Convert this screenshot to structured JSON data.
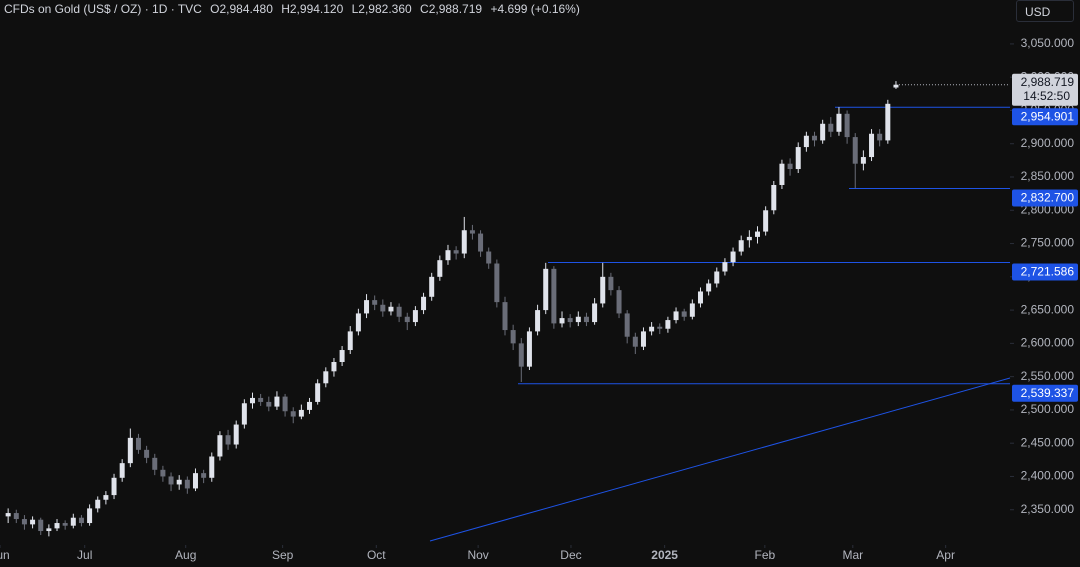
{
  "header": {
    "title": "CFDs on Gold (US$ / OZ) · 1D · TVC",
    "open": "O2,984.480",
    "high": "H2,994.120",
    "low": "L2,982.360",
    "close": "C2,988.719",
    "change": "+4.699 (+0.16%)",
    "currency": "USD"
  },
  "chart_data": {
    "type": "candlestick",
    "up_color": "#e0e3eb",
    "down_color": "#6a6d78",
    "xlim": [
      -1,
      123
    ],
    "ylim": [
      2297,
      3116
    ],
    "xticks": [
      {
        "value": -1,
        "label": "Jun"
      },
      {
        "value": 9.4,
        "label": "Jul"
      },
      {
        "value": 21.8,
        "label": "Aug"
      },
      {
        "value": 33.7,
        "label": "Sep"
      },
      {
        "value": 45.2,
        "label": "Oct"
      },
      {
        "value": 57.7,
        "label": "Nov"
      },
      {
        "value": 69.1,
        "label": "Dec"
      },
      {
        "value": 80.6,
        "label": "2025"
      },
      {
        "value": 92.9,
        "label": "Feb"
      },
      {
        "value": 103.7,
        "label": "Mar"
      },
      {
        "value": 115.1,
        "label": "Apr"
      }
    ],
    "yticks": [
      {
        "value": 2350,
        "label": "2,350.000"
      },
      {
        "value": 2400,
        "label": "2,400.000"
      },
      {
        "value": 2450,
        "label": "2,450.000"
      },
      {
        "value": 2500,
        "label": "2,500.000"
      },
      {
        "value": 2550,
        "label": "2,550.000"
      },
      {
        "value": 2600,
        "label": "2,600.000"
      },
      {
        "value": 2650,
        "label": "2,650.000"
      },
      {
        "value": 2700,
        "label": "2,700.000"
      },
      {
        "value": 2750,
        "label": "2,750.000"
      },
      {
        "value": 2800,
        "label": "2,800.000"
      },
      {
        "value": 2850,
        "label": "2,850.000"
      },
      {
        "value": 2900,
        "label": "2,900.000"
      },
      {
        "value": 2950,
        "label": "2,950.000"
      },
      {
        "value": 3000,
        "label": "3,000.000"
      },
      {
        "value": 3050,
        "label": "3,050.000"
      }
    ],
    "hlines": [
      {
        "value": 2954.901,
        "label": "2,954.901"
      },
      {
        "value": 2832.7,
        "label": "2,832.700"
      },
      {
        "value": 2721.586,
        "label": "2,721.586"
      },
      {
        "value": 2539.337,
        "label": "2,539.337"
      }
    ],
    "last_price": {
      "label": "2,988.719",
      "countdown": "14:52:50"
    },
    "ohlc": [
      [
        2340,
        2352,
        2330,
        2345
      ],
      [
        2345,
        2350,
        2330,
        2336
      ],
      [
        2336,
        2342,
        2320,
        2328
      ],
      [
        2328,
        2340,
        2322,
        2335
      ],
      [
        2335,
        2338,
        2312,
        2318
      ],
      [
        2318,
        2328,
        2310,
        2322
      ],
      [
        2322,
        2336,
        2318,
        2330
      ],
      [
        2330,
        2334,
        2320,
        2326
      ],
      [
        2326,
        2344,
        2322,
        2338
      ],
      [
        2338,
        2342,
        2325,
        2330
      ],
      [
        2330,
        2358,
        2326,
        2352
      ],
      [
        2352,
        2370,
        2346,
        2365
      ],
      [
        2365,
        2378,
        2358,
        2372
      ],
      [
        2372,
        2404,
        2366,
        2398
      ],
      [
        2398,
        2426,
        2392,
        2420
      ],
      [
        2420,
        2472,
        2414,
        2458
      ],
      [
        2458,
        2464,
        2434,
        2440
      ],
      [
        2440,
        2446,
        2420,
        2428
      ],
      [
        2428,
        2434,
        2402,
        2410
      ],
      [
        2410,
        2416,
        2392,
        2400
      ],
      [
        2400,
        2406,
        2378,
        2388
      ],
      [
        2388,
        2402,
        2380,
        2395
      ],
      [
        2395,
        2400,
        2374,
        2382
      ],
      [
        2382,
        2412,
        2378,
        2405
      ],
      [
        2405,
        2410,
        2390,
        2398
      ],
      [
        2398,
        2436,
        2392,
        2430
      ],
      [
        2430,
        2468,
        2424,
        2462
      ],
      [
        2462,
        2470,
        2440,
        2448
      ],
      [
        2448,
        2484,
        2442,
        2478
      ],
      [
        2478,
        2516,
        2472,
        2510
      ],
      [
        2510,
        2526,
        2502,
        2518
      ],
      [
        2518,
        2524,
        2506,
        2512
      ],
      [
        2512,
        2520,
        2498,
        2505
      ],
      [
        2505,
        2528,
        2500,
        2520
      ],
      [
        2520,
        2524,
        2490,
        2498
      ],
      [
        2498,
        2504,
        2480,
        2490
      ],
      [
        2490,
        2508,
        2486,
        2500
      ],
      [
        2500,
        2518,
        2494,
        2512
      ],
      [
        2512,
        2546,
        2508,
        2540
      ],
      [
        2540,
        2564,
        2534,
        2558
      ],
      [
        2558,
        2578,
        2550,
        2572
      ],
      [
        2572,
        2596,
        2566,
        2590
      ],
      [
        2590,
        2626,
        2584,
        2618
      ],
      [
        2618,
        2652,
        2612,
        2645
      ],
      [
        2645,
        2674,
        2638,
        2665
      ],
      [
        2665,
        2672,
        2650,
        2658
      ],
      [
        2658,
        2666,
        2640,
        2648
      ],
      [
        2648,
        2662,
        2642,
        2655
      ],
      [
        2655,
        2660,
        2632,
        2640
      ],
      [
        2640,
        2646,
        2620,
        2632
      ],
      [
        2632,
        2656,
        2626,
        2650
      ],
      [
        2650,
        2676,
        2644,
        2670
      ],
      [
        2670,
        2706,
        2664,
        2700
      ],
      [
        2700,
        2732,
        2694,
        2725
      ],
      [
        2725,
        2748,
        2718,
        2740
      ],
      [
        2740,
        2746,
        2726,
        2735
      ],
      [
        2735,
        2790,
        2728,
        2770
      ],
      [
        2770,
        2778,
        2756,
        2765
      ],
      [
        2765,
        2770,
        2730,
        2738
      ],
      [
        2738,
        2744,
        2712,
        2720
      ],
      [
        2720,
        2726,
        2654,
        2662
      ],
      [
        2662,
        2670,
        2612,
        2620
      ],
      [
        2620,
        2628,
        2590,
        2600
      ],
      [
        2600,
        2608,
        2542,
        2565
      ],
      [
        2565,
        2624,
        2560,
        2618
      ],
      [
        2618,
        2658,
        2612,
        2650
      ],
      [
        2650,
        2721,
        2644,
        2712
      ],
      [
        2712,
        2716,
        2622,
        2630
      ],
      [
        2630,
        2648,
        2624,
        2638
      ],
      [
        2638,
        2644,
        2624,
        2632
      ],
      [
        2632,
        2648,
        2626,
        2640
      ],
      [
        2640,
        2646,
        2626,
        2632
      ],
      [
        2632,
        2668,
        2628,
        2660
      ],
      [
        2660,
        2721,
        2654,
        2700
      ],
      [
        2700,
        2706,
        2672,
        2680
      ],
      [
        2680,
        2686,
        2638,
        2645
      ],
      [
        2645,
        2650,
        2600,
        2610
      ],
      [
        2610,
        2616,
        2584,
        2595
      ],
      [
        2595,
        2624,
        2590,
        2618
      ],
      [
        2618,
        2632,
        2612,
        2625
      ],
      [
        2625,
        2630,
        2614,
        2622
      ],
      [
        2622,
        2640,
        2616,
        2635
      ],
      [
        2635,
        2654,
        2630,
        2648
      ],
      [
        2648,
        2652,
        2634,
        2640
      ],
      [
        2640,
        2666,
        2636,
        2660
      ],
      [
        2660,
        2684,
        2654,
        2678
      ],
      [
        2678,
        2696,
        2672,
        2690
      ],
      [
        2690,
        2714,
        2684,
        2708
      ],
      [
        2708,
        2728,
        2702,
        2722
      ],
      [
        2722,
        2744,
        2716,
        2738
      ],
      [
        2738,
        2762,
        2732,
        2755
      ],
      [
        2755,
        2770,
        2744,
        2760
      ],
      [
        2760,
        2776,
        2750,
        2768
      ],
      [
        2768,
        2806,
        2762,
        2800
      ],
      [
        2800,
        2844,
        2794,
        2838
      ],
      [
        2838,
        2876,
        2832,
        2870
      ],
      [
        2870,
        2878,
        2852,
        2862
      ],
      [
        2862,
        2902,
        2856,
        2895
      ],
      [
        2895,
        2918,
        2888,
        2912
      ],
      [
        2912,
        2918,
        2896,
        2905
      ],
      [
        2905,
        2936,
        2900,
        2930
      ],
      [
        2930,
        2940,
        2910,
        2918
      ],
      [
        2918,
        2955,
        2912,
        2945
      ],
      [
        2945,
        2950,
        2900,
        2910
      ],
      [
        2910,
        2916,
        2833,
        2870
      ],
      [
        2870,
        2890,
        2860,
        2880
      ],
      [
        2880,
        2922,
        2874,
        2915
      ],
      [
        2915,
        2922,
        2896,
        2905
      ],
      [
        2905,
        2966,
        2900,
        2960
      ],
      [
        2984.48,
        2994.12,
        2982.36,
        2988.719
      ]
    ]
  }
}
